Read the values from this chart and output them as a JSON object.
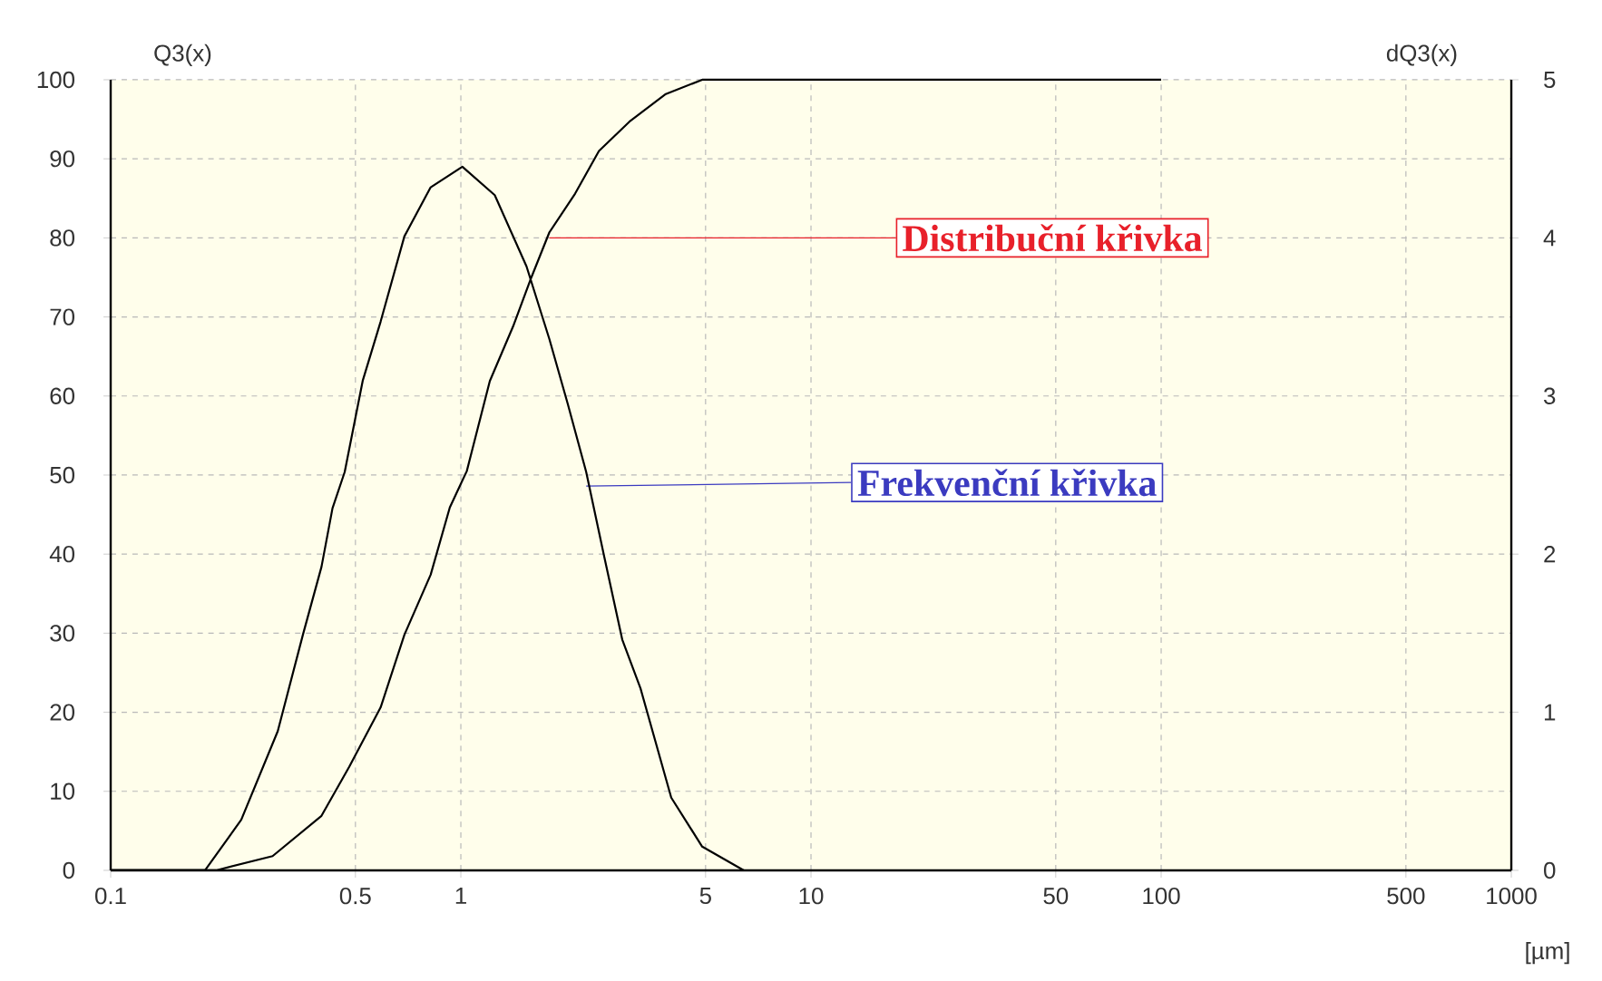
{
  "chart_data": {
    "type": "line",
    "xlabel": "[µm]",
    "ylabel": "Q3(x)",
    "y2label": "dQ3(x)",
    "log": "x",
    "grid": true,
    "line_style": "solid",
    "marker": "none",
    "xlim": [
      0.1,
      1000
    ],
    "xticks": [
      0.1,
      0.5,
      1,
      5,
      10,
      50,
      100,
      500,
      1000
    ],
    "ylim": [
      0,
      100
    ],
    "yticks": [
      0,
      10,
      20,
      30,
      40,
      50,
      60,
      70,
      80,
      90,
      100
    ],
    "y2lim": [
      0,
      5
    ],
    "y2ticks": [
      0,
      1,
      2,
      3,
      4,
      5
    ],
    "series": [
      {
        "color": "#000000",
        "x": [
          0.1,
          0.2,
          0.29,
          0.4,
          0.48,
          0.59,
          0.69,
          0.82,
          0.93,
          1.04,
          1.21,
          1.41,
          1.59,
          1.79,
          2.12,
          2.48,
          3.03,
          3.85,
          4.89,
          100
        ],
        "values": [
          0,
          0,
          1.8,
          6.9,
          13.1,
          20.6,
          29.8,
          37.4,
          45.9,
          50.5,
          61.9,
          68.8,
          75,
          80.7,
          85.6,
          91,
          94.7,
          98.2,
          100,
          100
        ]
      },
      {
        "color": "#000000",
        "axis": "y2",
        "x": [
          0.1,
          0.186,
          0.236,
          0.3,
          0.354,
          0.4,
          0.43,
          0.466,
          0.525,
          0.59,
          0.69,
          0.82,
          1.01,
          1.25,
          1.54,
          1.79,
          2.02,
          2.28,
          2.57,
          2.89,
          3.26,
          3.99,
          4.89,
          6.43
        ],
        "values": [
          0,
          0,
          0.32,
          0.88,
          1.49,
          1.92,
          2.29,
          2.52,
          3.1,
          3.47,
          4.01,
          4.32,
          4.45,
          4.27,
          3.82,
          3.36,
          2.95,
          2.52,
          1.98,
          1.46,
          1.15,
          0.46,
          0.15,
          0
        ]
      }
    ],
    "annotations": [
      {
        "text": "Distribuční křivka",
        "x": 1.79,
        "y": 80
      },
      {
        "text": "Frekvenční křivka",
        "x": 2.28,
        "y": 48.6
      }
    ]
  }
}
